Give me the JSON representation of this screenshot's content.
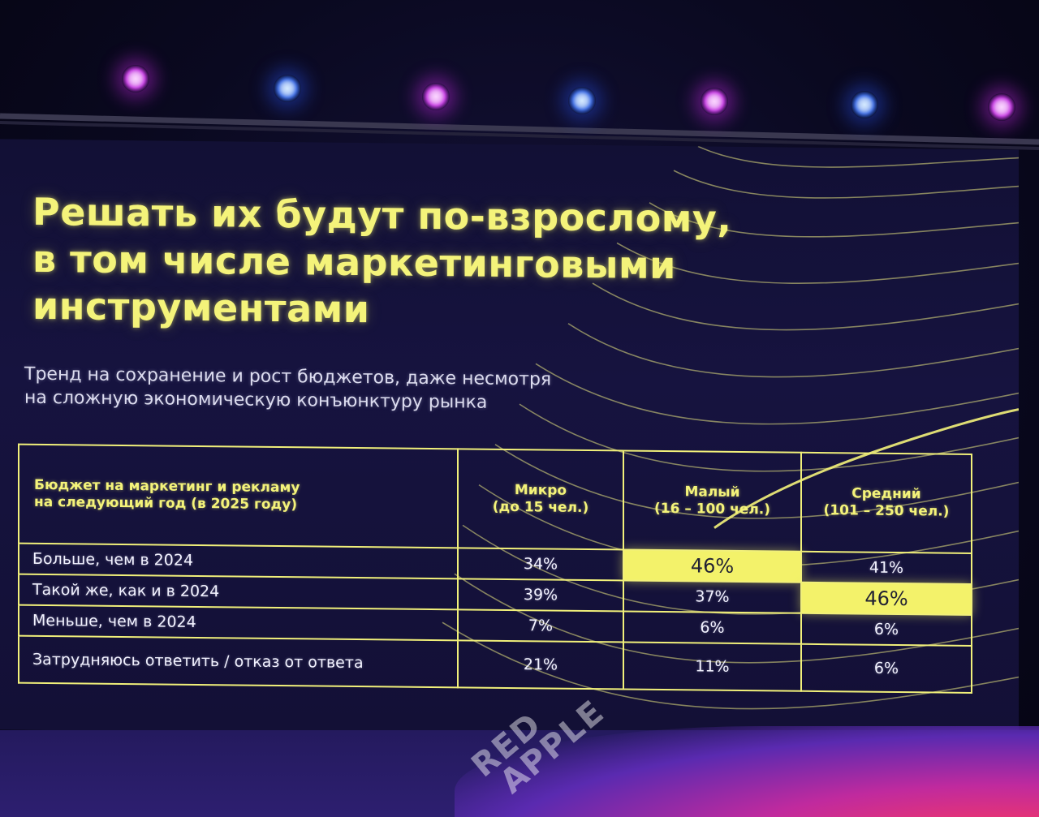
{
  "slide": {
    "title_lines": [
      "Решать их будут по-взрослому,",
      "в том числе маркетинговыми",
      "инструментами"
    ],
    "subtitle_lines": [
      "Тренд на сохранение и рост бюджетов, даже несмотря",
      "на сложную экономическую конъюнктуру рынка"
    ],
    "accent_color": "#f4f37a",
    "background_color": "#14113a"
  },
  "table": {
    "header": {
      "label_lines": [
        "Бюджет на маркетинг и рекламу",
        "на следующий год (в 2025 году)"
      ],
      "segments": [
        {
          "name": "Микро",
          "range": "(до 15 чел.)"
        },
        {
          "name": "Малый",
          "range": "(16 – 100 чел.)"
        },
        {
          "name": "Средний",
          "range": "(101 – 250 чел.)"
        }
      ]
    },
    "rows": [
      {
        "label": "Больше, чем в 2024",
        "values": [
          "34%",
          "46%",
          "41%"
        ],
        "highlight_index": 1
      },
      {
        "label": "Такой же, как и в 2024",
        "values": [
          "39%",
          "37%",
          "46%"
        ],
        "highlight_index": 2
      },
      {
        "label": "Меньше, чем в 2024",
        "values": [
          "7%",
          "6%",
          "6%"
        ],
        "highlight_index": -1
      },
      {
        "label": "Затрудняюсь ответить / отказ от ответа",
        "values": [
          "21%",
          "11%",
          "6%"
        ],
        "highlight_index": -1
      }
    ]
  },
  "stage": {
    "logo_lines": [
      "RED",
      "APPLE"
    ]
  },
  "lights": [
    {
      "color": "magenta"
    },
    {
      "color": "blue"
    },
    {
      "color": "magenta"
    },
    {
      "color": "blue"
    },
    {
      "color": "magenta"
    },
    {
      "color": "blue"
    },
    {
      "color": "magenta"
    }
  ]
}
